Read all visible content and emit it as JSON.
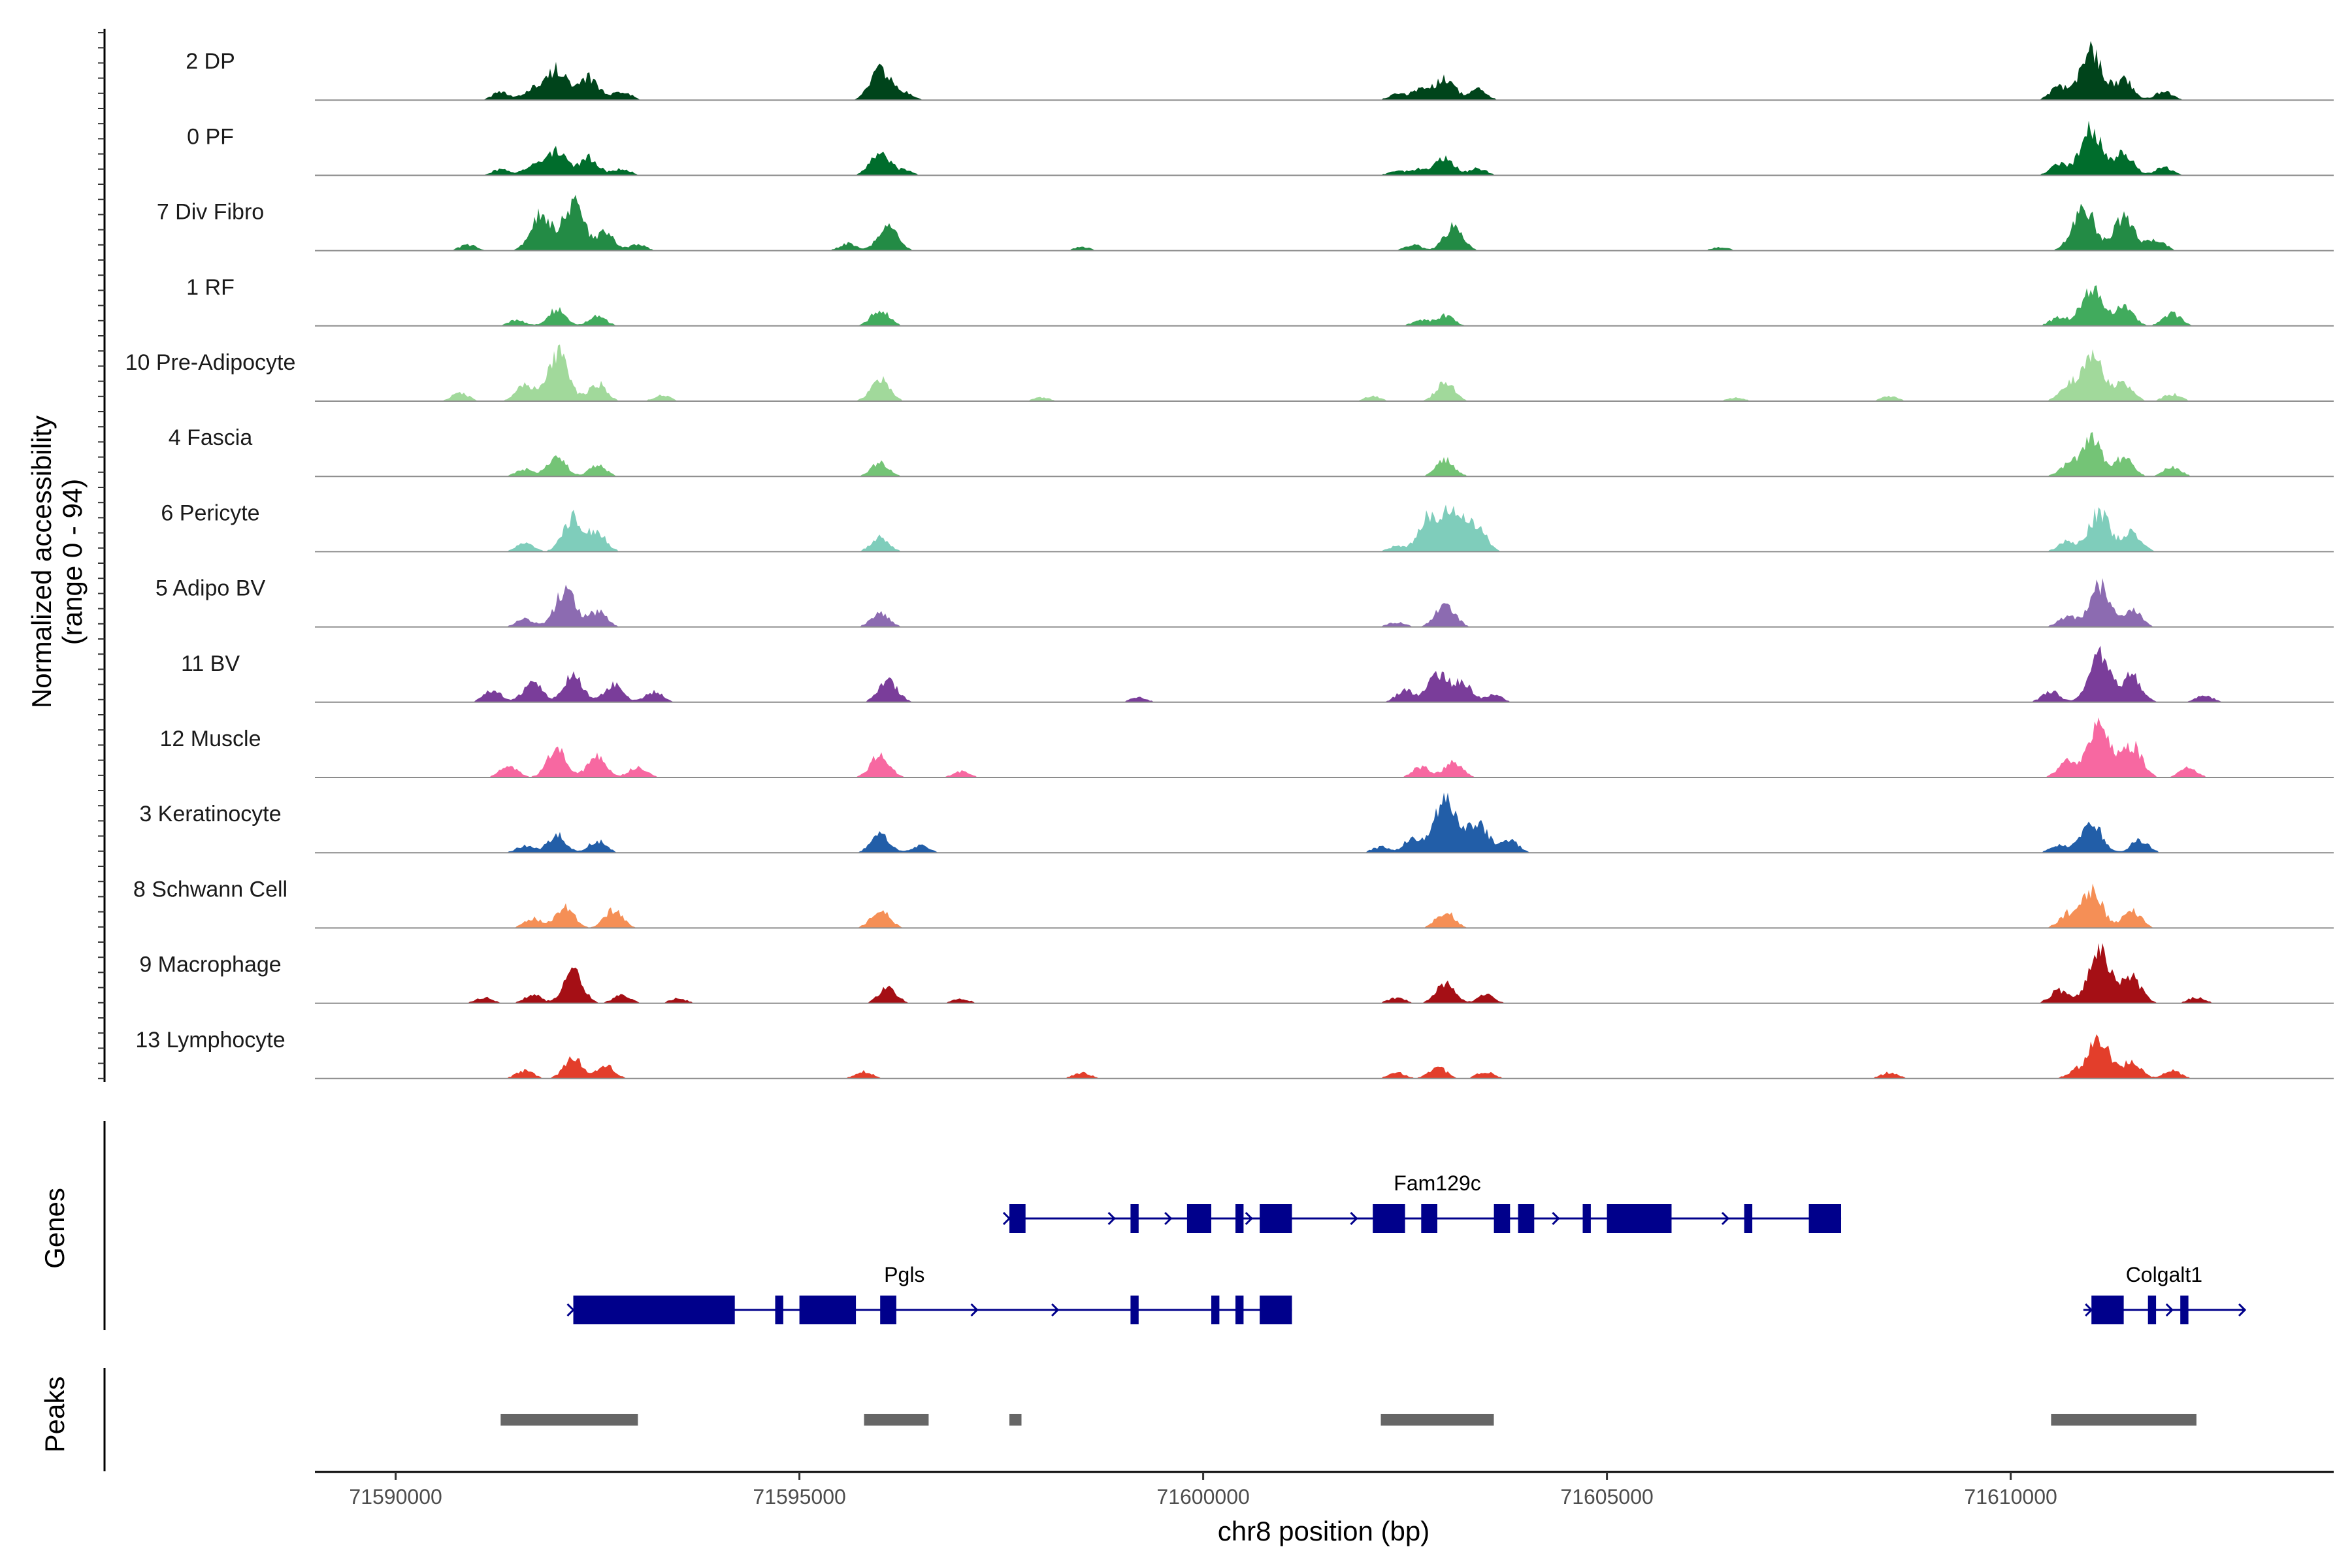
{
  "chart_data": {
    "type": "area",
    "title": "",
    "xlabel": "chr8 position (bp)",
    "ylabel": "Normalized accessibility",
    "ylabel_sub": "(range 0 - 94)",
    "xlim": [
      71589000,
      71614000
    ],
    "ylim": [
      0,
      94
    ],
    "x_ticks": [
      71590000,
      71595000,
      71600000,
      71605000,
      71610000
    ],
    "x_tick_labels": [
      "71590000",
      "71595000",
      "71600000",
      "71605000",
      "71610000"
    ],
    "tracks": [
      {
        "name": "2 DP",
        "color": "#00441b",
        "peaks": [
          [
            71591300,
            0.13
          ],
          [
            71591700,
            0.2
          ],
          [
            71592000,
            0.55
          ],
          [
            71592400,
            0.38
          ],
          [
            71592800,
            0.16
          ],
          [
            71596000,
            0.55
          ],
          [
            71596300,
            0.12
          ],
          [
            71602400,
            0.1
          ],
          [
            71602700,
            0.2
          ],
          [
            71603000,
            0.38
          ],
          [
            71603400,
            0.18
          ],
          [
            71610600,
            0.22
          ],
          [
            71611000,
            0.85
          ],
          [
            71611400,
            0.35
          ],
          [
            71611900,
            0.15
          ]
        ]
      },
      {
        "name": "0 PF",
        "color": "#006d2c",
        "peaks": [
          [
            71591300,
            0.1
          ],
          [
            71591700,
            0.18
          ],
          [
            71592000,
            0.45
          ],
          [
            71592400,
            0.3
          ],
          [
            71592800,
            0.12
          ],
          [
            71596000,
            0.42
          ],
          [
            71596300,
            0.08
          ],
          [
            71602400,
            0.08
          ],
          [
            71602700,
            0.12
          ],
          [
            71603000,
            0.3
          ],
          [
            71603400,
            0.12
          ],
          [
            71610600,
            0.18
          ],
          [
            71611000,
            0.82
          ],
          [
            71611400,
            0.4
          ],
          [
            71611900,
            0.14
          ]
        ]
      },
      {
        "name": "7 Div Fibro",
        "color": "#238b45",
        "peaks": [
          [
            71590900,
            0.1
          ],
          [
            71591800,
            0.62
          ],
          [
            71592200,
            0.78
          ],
          [
            71592600,
            0.3
          ],
          [
            71593000,
            0.1
          ],
          [
            71595600,
            0.12
          ],
          [
            71596100,
            0.45
          ],
          [
            71598500,
            0.06
          ],
          [
            71602600,
            0.1
          ],
          [
            71603100,
            0.4
          ],
          [
            71606400,
            0.06
          ],
          [
            71610900,
            0.78
          ],
          [
            71611400,
            0.58
          ],
          [
            71611800,
            0.2
          ]
        ]
      },
      {
        "name": "1 RF",
        "color": "#41ab5d",
        "peaks": [
          [
            71591500,
            0.1
          ],
          [
            71592000,
            0.28
          ],
          [
            71592500,
            0.16
          ],
          [
            71596000,
            0.28
          ],
          [
            71602700,
            0.1
          ],
          [
            71603000,
            0.18
          ],
          [
            71610600,
            0.15
          ],
          [
            71611000,
            0.68
          ],
          [
            71611400,
            0.35
          ],
          [
            71612000,
            0.22
          ]
        ]
      },
      {
        "name": "10 Pre-Adipocyte",
        "color": "#a1d99b",
        "peaks": [
          [
            71590800,
            0.14
          ],
          [
            71591600,
            0.26
          ],
          [
            71592000,
            0.8
          ],
          [
            71592500,
            0.3
          ],
          [
            71593300,
            0.1
          ],
          [
            71596000,
            0.38
          ],
          [
            71598000,
            0.06
          ],
          [
            71602100,
            0.08
          ],
          [
            71603000,
            0.32
          ],
          [
            71606600,
            0.06
          ],
          [
            71608500,
            0.08
          ],
          [
            71610700,
            0.22
          ],
          [
            71611000,
            0.84
          ],
          [
            71611400,
            0.3
          ],
          [
            71612000,
            0.12
          ]
        ]
      },
      {
        "name": "4 Fascia",
        "color": "#74c476",
        "peaks": [
          [
            71591600,
            0.12
          ],
          [
            71592000,
            0.32
          ],
          [
            71592500,
            0.18
          ],
          [
            71596000,
            0.24
          ],
          [
            71603000,
            0.28
          ],
          [
            71610700,
            0.18
          ],
          [
            71611000,
            0.68
          ],
          [
            71611400,
            0.32
          ],
          [
            71612000,
            0.16
          ]
        ]
      },
      {
        "name": "6 Pericyte",
        "color": "#7fcdbb",
        "peaks": [
          [
            71591600,
            0.14
          ],
          [
            71592200,
            0.58
          ],
          [
            71592500,
            0.3
          ],
          [
            71596000,
            0.24
          ],
          [
            71602400,
            0.1
          ],
          [
            71602800,
            0.6
          ],
          [
            71603100,
            0.74
          ],
          [
            71603400,
            0.38
          ],
          [
            71610700,
            0.18
          ],
          [
            71611100,
            0.68
          ],
          [
            71611500,
            0.34
          ]
        ]
      },
      {
        "name": "5 Adipo BV",
        "color": "#8c6bb1",
        "peaks": [
          [
            71591600,
            0.14
          ],
          [
            71592100,
            0.62
          ],
          [
            71592500,
            0.26
          ],
          [
            71596000,
            0.24
          ],
          [
            71602400,
            0.08
          ],
          [
            71603000,
            0.42
          ],
          [
            71610700,
            0.18
          ],
          [
            71611100,
            0.7
          ],
          [
            71611500,
            0.3
          ]
        ]
      },
      {
        "name": "11 BV",
        "color": "#7a3d9a",
        "peaks": [
          [
            71591200,
            0.2
          ],
          [
            71591700,
            0.35
          ],
          [
            71592200,
            0.45
          ],
          [
            71592700,
            0.3
          ],
          [
            71593200,
            0.18
          ],
          [
            71596100,
            0.38
          ],
          [
            71599200,
            0.08
          ],
          [
            71602500,
            0.2
          ],
          [
            71602900,
            0.45
          ],
          [
            71603200,
            0.35
          ],
          [
            71603600,
            0.12
          ],
          [
            71610500,
            0.18
          ],
          [
            71611100,
            0.82
          ],
          [
            71611500,
            0.45
          ],
          [
            71612400,
            0.12
          ]
        ]
      },
      {
        "name": "12 Muscle",
        "color": "#f768a1",
        "peaks": [
          [
            71591400,
            0.2
          ],
          [
            71592000,
            0.48
          ],
          [
            71592500,
            0.36
          ],
          [
            71593000,
            0.18
          ],
          [
            71596000,
            0.4
          ],
          [
            71597000,
            0.1
          ],
          [
            71602700,
            0.18
          ],
          [
            71603100,
            0.26
          ],
          [
            71610700,
            0.28
          ],
          [
            71611100,
            0.9
          ],
          [
            71611500,
            0.55
          ],
          [
            71612200,
            0.16
          ]
        ]
      },
      {
        "name": "3 Keratinocyte",
        "color": "#225ea8",
        "peaks": [
          [
            71591600,
            0.12
          ],
          [
            71592000,
            0.3
          ],
          [
            71592500,
            0.2
          ],
          [
            71596000,
            0.32
          ],
          [
            71596500,
            0.12
          ],
          [
            71602200,
            0.1
          ],
          [
            71602600,
            0.25
          ],
          [
            71603000,
            0.92
          ],
          [
            71603400,
            0.55
          ],
          [
            71603800,
            0.2
          ],
          [
            71610600,
            0.14
          ],
          [
            71611000,
            0.55
          ],
          [
            71611600,
            0.22
          ]
        ]
      },
      {
        "name": "8 Schwann Cell",
        "color": "#f58f56",
        "peaks": [
          [
            71591700,
            0.16
          ],
          [
            71592100,
            0.34
          ],
          [
            71592700,
            0.3
          ],
          [
            71596000,
            0.32
          ],
          [
            71603000,
            0.28
          ],
          [
            71610700,
            0.22
          ],
          [
            71611000,
            0.68
          ],
          [
            71611500,
            0.3
          ]
        ]
      },
      {
        "name": "9 Macrophage",
        "color": "#a50f15",
        "peaks": [
          [
            71591100,
            0.1
          ],
          [
            71591700,
            0.14
          ],
          [
            71592200,
            0.52
          ],
          [
            71592800,
            0.14
          ],
          [
            71593500,
            0.08
          ],
          [
            71596100,
            0.26
          ],
          [
            71597000,
            0.08
          ],
          [
            71602400,
            0.1
          ],
          [
            71603000,
            0.34
          ],
          [
            71603500,
            0.14
          ],
          [
            71610600,
            0.22
          ],
          [
            71611100,
            0.92
          ],
          [
            71611500,
            0.44
          ],
          [
            71612300,
            0.1
          ]
        ]
      },
      {
        "name": "13 Lymphocyte",
        "color": "#e33e2b",
        "peaks": [
          [
            71591600,
            0.14
          ],
          [
            71592200,
            0.36
          ],
          [
            71592600,
            0.22
          ],
          [
            71595800,
            0.12
          ],
          [
            71598500,
            0.1
          ],
          [
            71602400,
            0.1
          ],
          [
            71602900,
            0.2
          ],
          [
            71603500,
            0.12
          ],
          [
            71608500,
            0.1
          ],
          [
            71610800,
            0.12
          ],
          [
            71611100,
            0.72
          ],
          [
            71611500,
            0.28
          ],
          [
            71612000,
            0.14
          ]
        ]
      }
    ],
    "genes": [
      {
        "name": "Fam129c",
        "color": "#00008b",
        "start": 71597600,
        "end": 71607900,
        "exons": [
          [
            71597600,
            71597800
          ],
          [
            71599100,
            71599200
          ],
          [
            71599800,
            71600100
          ],
          [
            71600400,
            71600500
          ],
          [
            71600700,
            71601100
          ],
          [
            71602100,
            71602500
          ],
          [
            71602700,
            71602900
          ],
          [
            71603600,
            71603800
          ],
          [
            71603900,
            71604100
          ],
          [
            71604700,
            71604800
          ],
          [
            71605000,
            71605800
          ],
          [
            71606700,
            71606800
          ],
          [
            71607500,
            71607900
          ]
        ],
        "arrows": [
          71597600,
          71598900,
          71599600,
          71600600,
          71601900,
          71604400,
          71606500
        ]
      },
      {
        "name": "Pgls",
        "color": "#00008b",
        "start": 71592200,
        "end": 71601100,
        "exons": [
          [
            71592200,
            71594200
          ],
          [
            71594700,
            71594800
          ],
          [
            71595000,
            71595700
          ],
          [
            71596000,
            71596200
          ],
          [
            71599100,
            71599200
          ],
          [
            71600100,
            71600200
          ],
          [
            71600400,
            71600500
          ],
          [
            71600700,
            71601100
          ]
        ],
        "arrows": [
          71592200,
          71597200,
          71598200
        ]
      },
      {
        "name": "Colgalt1",
        "color": "#00008b",
        "start": 71610900,
        "end": 71612900,
        "exons": [
          [
            71611000,
            71611400
          ],
          [
            71611700,
            71611800
          ],
          [
            71612100,
            71612200
          ]
        ],
        "arrows": [
          71611000,
          71612000,
          71612900
        ]
      }
    ],
    "peaks_regions": [
      [
        71591300,
        71593000
      ],
      [
        71595800,
        71596600
      ],
      [
        71597600,
        71597750
      ],
      [
        71602200,
        71603600
      ],
      [
        71610500,
        71612300
      ]
    ],
    "panel_labels": {
      "genes": "Genes",
      "peaks": "Peaks"
    },
    "peak_color": "#666666"
  }
}
